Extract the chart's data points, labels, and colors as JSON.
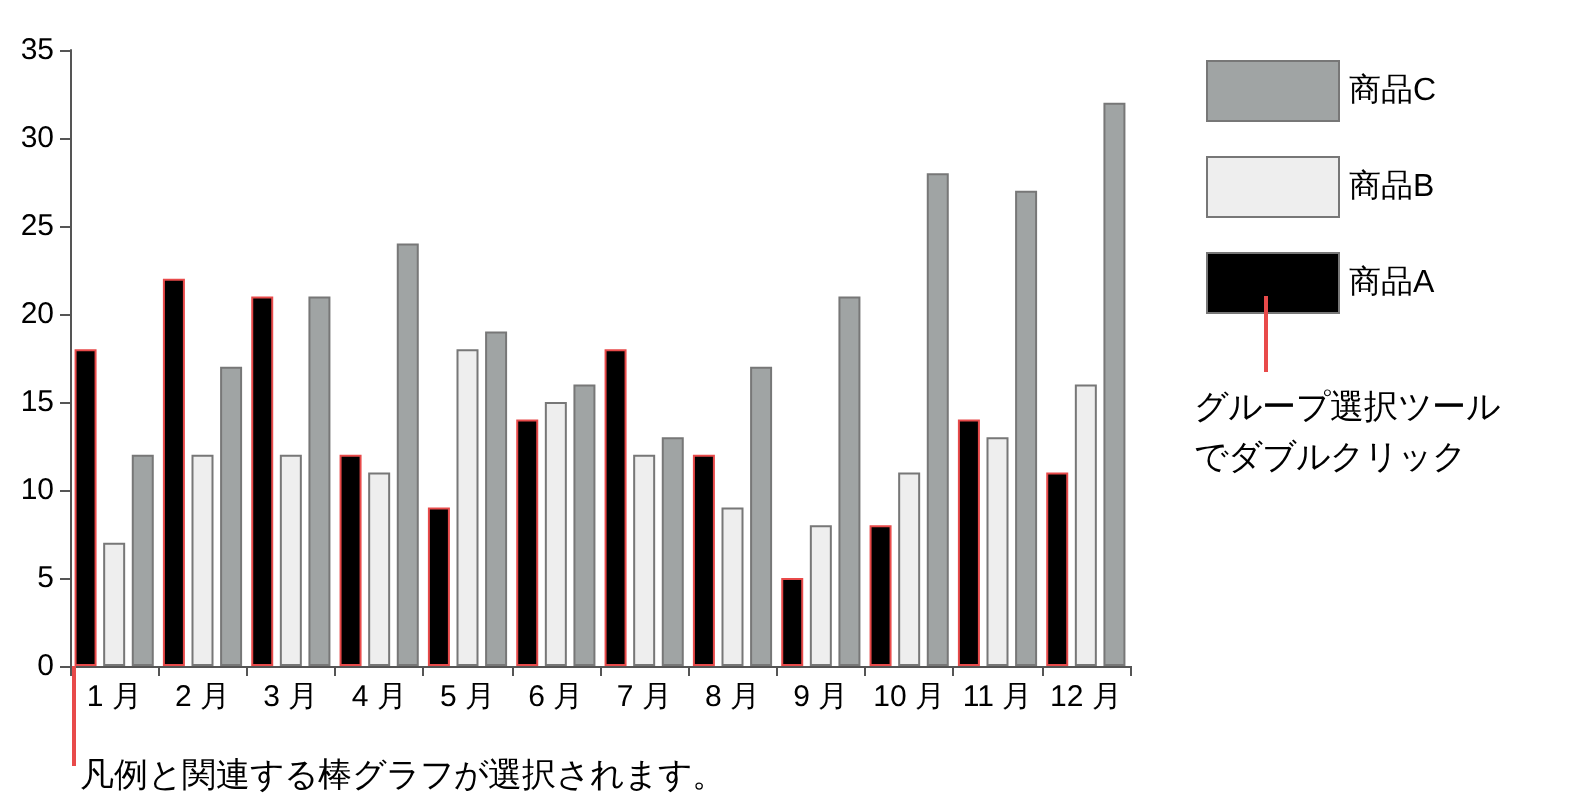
{
  "chart_data": {
    "type": "bar",
    "categories": [
      "1 月",
      "2 月",
      "3 月",
      "4 月",
      "5 月",
      "6 月",
      "7 月",
      "8 月",
      "9 月",
      "10 月",
      "11 月",
      "12 月"
    ],
    "series": [
      {
        "name": "商品A",
        "color": "#000000",
        "values": [
          18,
          22,
          21,
          12,
          9,
          14,
          18,
          12,
          5,
          8,
          14,
          11
        ]
      },
      {
        "name": "商品B",
        "color": "#eeeeee",
        "values": [
          7,
          12,
          12,
          11,
          18,
          15,
          12,
          9,
          8,
          11,
          13,
          16
        ]
      },
      {
        "name": "商品C",
        "color": "#a0a4a4",
        "values": [
          12,
          17,
          21,
          24,
          19,
          16,
          13,
          17,
          21,
          28,
          27,
          32
        ]
      }
    ],
    "ylim": [
      0,
      35
    ],
    "yticks": [
      0,
      5,
      10,
      15,
      20,
      25,
      30,
      35
    ],
    "grid": false,
    "legend": "right",
    "annotations": [
      "グループ選択ツールでダブルクリック",
      "凡例と関連する棒グラフが選択されます。"
    ]
  }
}
